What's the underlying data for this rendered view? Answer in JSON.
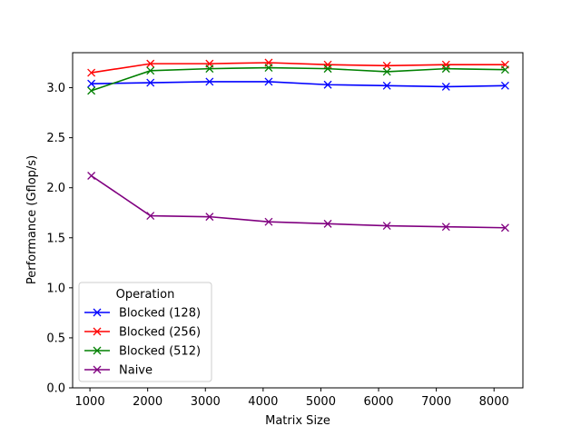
{
  "chart_data": {
    "type": "line",
    "xlabel": "Matrix Size",
    "ylabel": "Performance (Gflop/s)",
    "xlim": [
      700,
      8500
    ],
    "ylim": [
      0.0,
      3.35
    ],
    "xticks": [
      1000,
      2000,
      3000,
      4000,
      5000,
      6000,
      7000,
      8000
    ],
    "yticks": [
      0.0,
      0.5,
      1.0,
      1.5,
      2.0,
      2.5,
      3.0
    ],
    "xtick_labels": [
      "1000",
      "2000",
      "3000",
      "4000",
      "5000",
      "6000",
      "7000",
      "8000"
    ],
    "ytick_labels": [
      "0.0",
      "0.5",
      "1.0",
      "1.5",
      "2.0",
      "2.5",
      "3.0"
    ],
    "x": [
      1024,
      2048,
      3072,
      4096,
      5120,
      6144,
      7168,
      8192
    ],
    "grid": false,
    "legend": {
      "title": "Operation",
      "placement": "lower-left"
    },
    "marker": "x",
    "series": [
      {
        "name": "Blocked (128)",
        "color": "#0000ff",
        "values": [
          3.04,
          3.05,
          3.06,
          3.06,
          3.03,
          3.02,
          3.01,
          3.02
        ]
      },
      {
        "name": "Blocked (256)",
        "color": "#ff0000",
        "values": [
          3.15,
          3.24,
          3.24,
          3.25,
          3.23,
          3.22,
          3.23,
          3.23
        ]
      },
      {
        "name": "Blocked (512)",
        "color": "#008000",
        "values": [
          2.97,
          3.17,
          3.19,
          3.2,
          3.19,
          3.16,
          3.19,
          3.18
        ]
      },
      {
        "name": "Naive",
        "color": "#800080",
        "values": [
          2.12,
          1.72,
          1.71,
          1.66,
          1.64,
          1.62,
          1.61,
          1.6
        ]
      }
    ]
  }
}
